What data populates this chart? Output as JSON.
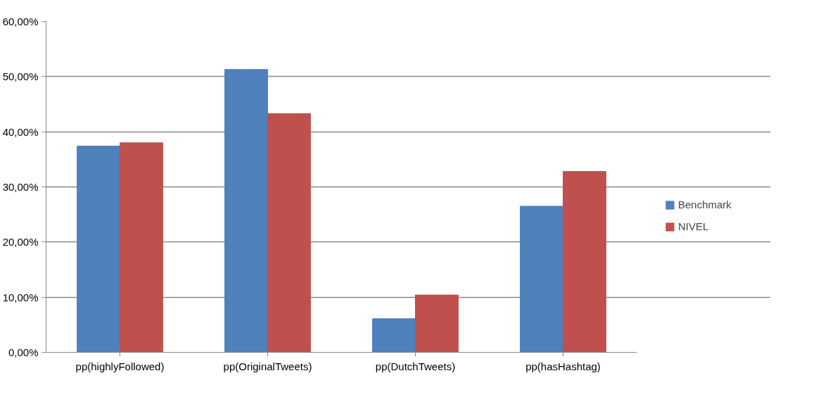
{
  "chart_data": {
    "type": "bar",
    "categories": [
      "pp(highlyFollowed)",
      "pp(OriginalTweets)",
      "pp(DutchTweets)",
      "pp(hasHashtag)"
    ],
    "series": [
      {
        "name": "Benchmark",
        "color": "#4f81bd",
        "values": [
          37.4,
          51.3,
          6.1,
          26.5
        ]
      },
      {
        "name": "NIVEL",
        "color": "#c0504d",
        "values": [
          38.0,
          43.3,
          10.4,
          32.8
        ]
      }
    ],
    "ylim": [
      0,
      60
    ],
    "yticks": [
      {
        "value": 0,
        "label": "0,00%"
      },
      {
        "value": 10,
        "label": "10,00%"
      },
      {
        "value": 20,
        "label": "20,00%"
      },
      {
        "value": 30,
        "label": "30,00%"
      },
      {
        "value": 40,
        "label": "40,00%"
      },
      {
        "value": 50,
        "label": "50,00%"
      },
      {
        "value": 60,
        "label": "60,00%"
      }
    ],
    "grid": "y",
    "legend": "right"
  }
}
